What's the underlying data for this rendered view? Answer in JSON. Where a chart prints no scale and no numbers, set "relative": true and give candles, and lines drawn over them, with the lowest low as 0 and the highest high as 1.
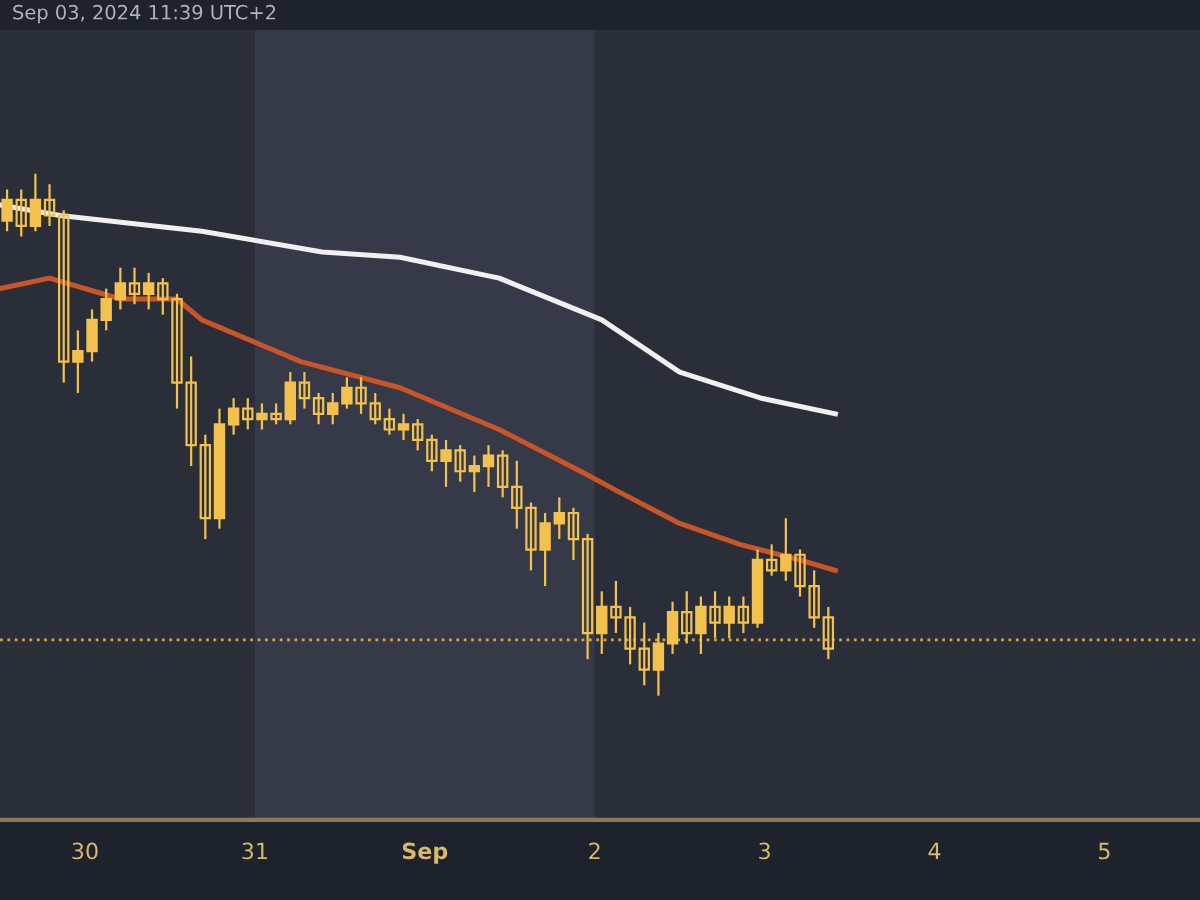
{
  "chart_data": {
    "type": "candlestick",
    "relative": true,
    "tick_labels": "x",
    "legend": false,
    "grid": false,
    "annotations": [
      "Sep 03, 2024 11:39 UTC+2"
    ],
    "x": [
      "2024-08-29T13:00",
      "2024-08-29T15:00",
      "2024-08-29T17:00",
      "2024-08-29T19:00",
      "2024-08-29T21:00",
      "2024-08-29T23:00",
      "2024-08-30T01:00",
      "2024-08-30T03:00",
      "2024-08-30T05:00",
      "2024-08-30T07:00",
      "2024-08-30T09:00",
      "2024-08-30T11:00",
      "2024-08-30T13:00",
      "2024-08-30T15:00",
      "2024-08-30T17:00",
      "2024-08-30T19:00",
      "2024-08-30T21:00",
      "2024-08-30T23:00",
      "2024-08-31T01:00",
      "2024-08-31T03:00",
      "2024-08-31T05:00",
      "2024-08-31T07:00",
      "2024-08-31T09:00",
      "2024-08-31T11:00",
      "2024-08-31T13:00",
      "2024-08-31T15:00",
      "2024-08-31T17:00",
      "2024-08-31T19:00",
      "2024-08-31T21:00",
      "2024-08-31T23:00",
      "2024-09-01T01:00",
      "2024-09-01T03:00",
      "2024-09-01T05:00",
      "2024-09-01T07:00",
      "2024-09-01T09:00",
      "2024-09-01T11:00",
      "2024-09-01T13:00",
      "2024-09-01T15:00",
      "2024-09-01T17:00",
      "2024-09-01T19:00",
      "2024-09-01T21:00",
      "2024-09-01T23:00",
      "2024-09-02T01:00",
      "2024-09-02T03:00",
      "2024-09-02T05:00",
      "2024-09-02T07:00",
      "2024-09-02T09:00",
      "2024-09-02T11:00",
      "2024-09-02T13:00",
      "2024-09-02T15:00",
      "2024-09-02T17:00",
      "2024-09-02T19:00",
      "2024-09-02T21:00",
      "2024-09-02T23:00",
      "2024-09-03T01:00",
      "2024-09-03T03:00",
      "2024-09-03T05:00",
      "2024-09-03T07:00",
      "2024-09-03T09:00"
    ],
    "xlim": [
      "2024-08-29T12:00",
      "2024-09-05T13:30"
    ],
    "xticks": [
      {
        "value": "2024-08-30",
        "label": "30"
      },
      {
        "value": "2024-08-31",
        "label": "31"
      },
      {
        "value": "2024-09-01",
        "label": "Sep"
      },
      {
        "value": "2024-09-02",
        "label": "2"
      },
      {
        "value": "2024-09-03",
        "label": "3"
      },
      {
        "value": "2024-09-04",
        "label": "4"
      },
      {
        "value": "2024-09-05",
        "label": "5"
      }
    ],
    "color": "#f2c14e",
    "ohlc": [
      [
        0.91,
        0.97,
        0.89,
        0.95
      ],
      [
        0.95,
        0.97,
        0.88,
        0.9
      ],
      [
        0.9,
        1.0,
        0.89,
        0.95
      ],
      [
        0.95,
        0.98,
        0.9,
        0.92
      ],
      [
        0.92,
        0.93,
        0.6,
        0.64
      ],
      [
        0.64,
        0.7,
        0.58,
        0.66
      ],
      [
        0.66,
        0.74,
        0.64,
        0.72
      ],
      [
        0.72,
        0.78,
        0.7,
        0.76
      ],
      [
        0.76,
        0.82,
        0.74,
        0.79
      ],
      [
        0.79,
        0.82,
        0.75,
        0.77
      ],
      [
        0.77,
        0.81,
        0.74,
        0.79
      ],
      [
        0.79,
        0.8,
        0.73,
        0.76
      ],
      [
        0.76,
        0.77,
        0.55,
        0.6
      ],
      [
        0.6,
        0.65,
        0.44,
        0.48
      ],
      [
        0.48,
        0.5,
        0.3,
        0.34
      ],
      [
        0.34,
        0.55,
        0.32,
        0.52
      ],
      [
        0.52,
        0.57,
        0.5,
        0.55
      ],
      [
        0.55,
        0.57,
        0.51,
        0.53
      ],
      [
        0.53,
        0.56,
        0.51,
        0.54
      ],
      [
        0.54,
        0.56,
        0.52,
        0.53
      ],
      [
        0.53,
        0.62,
        0.52,
        0.6
      ],
      [
        0.6,
        0.62,
        0.55,
        0.57
      ],
      [
        0.57,
        0.58,
        0.52,
        0.54
      ],
      [
        0.54,
        0.58,
        0.52,
        0.56
      ],
      [
        0.56,
        0.61,
        0.55,
        0.59
      ],
      [
        0.59,
        0.61,
        0.54,
        0.56
      ],
      [
        0.56,
        0.58,
        0.52,
        0.53
      ],
      [
        0.53,
        0.55,
        0.5,
        0.51
      ],
      [
        0.51,
        0.54,
        0.49,
        0.52
      ],
      [
        0.52,
        0.53,
        0.47,
        0.49
      ],
      [
        0.49,
        0.5,
        0.43,
        0.45
      ],
      [
        0.45,
        0.49,
        0.4,
        0.47
      ],
      [
        0.47,
        0.48,
        0.41,
        0.43
      ],
      [
        0.43,
        0.46,
        0.39,
        0.44
      ],
      [
        0.44,
        0.48,
        0.4,
        0.46
      ],
      [
        0.46,
        0.47,
        0.38,
        0.4
      ],
      [
        0.4,
        0.45,
        0.32,
        0.36
      ],
      [
        0.36,
        0.37,
        0.24,
        0.28
      ],
      [
        0.28,
        0.35,
        0.21,
        0.33
      ],
      [
        0.33,
        0.38,
        0.3,
        0.35
      ],
      [
        0.35,
        0.36,
        0.26,
        0.3
      ],
      [
        0.3,
        0.31,
        0.07,
        0.12
      ],
      [
        0.12,
        0.2,
        0.08,
        0.17
      ],
      [
        0.17,
        0.22,
        0.12,
        0.15
      ],
      [
        0.15,
        0.17,
        0.06,
        0.09
      ],
      [
        0.09,
        0.14,
        0.02,
        0.05
      ],
      [
        0.05,
        0.12,
        0.0,
        0.1
      ],
      [
        0.1,
        0.18,
        0.08,
        0.16
      ],
      [
        0.16,
        0.2,
        0.1,
        0.12
      ],
      [
        0.12,
        0.19,
        0.08,
        0.17
      ],
      [
        0.17,
        0.2,
        0.11,
        0.14
      ],
      [
        0.14,
        0.19,
        0.11,
        0.17
      ],
      [
        0.17,
        0.19,
        0.12,
        0.14
      ],
      [
        0.14,
        0.28,
        0.13,
        0.26
      ],
      [
        0.26,
        0.29,
        0.23,
        0.24
      ],
      [
        0.24,
        0.34,
        0.22,
        0.27
      ],
      [
        0.27,
        0.28,
        0.19,
        0.21
      ],
      [
        0.21,
        0.24,
        0.13,
        0.15
      ],
      [
        0.15,
        0.17,
        0.07,
        0.09
      ]
    ],
    "series": [
      {
        "type": "line",
        "color": "#f0f0f0",
        "x": [
          "2024-08-29T12:00",
          "2024-08-29T20:30",
          "2024-08-30T16:30",
          "2024-08-31T09:30",
          "2024-08-31T20:30",
          "2024-09-01T10:30",
          "2024-09-02T01:00",
          "2024-09-02T12:00",
          "2024-09-02T23:30",
          "2024-09-03T10:00"
        ],
        "values": [
          0.94,
          0.92,
          0.89,
          0.85,
          0.84,
          0.8,
          0.72,
          0.62,
          0.57,
          0.54
        ]
      },
      {
        "type": "line",
        "color": "#c8552a",
        "x": [
          "2024-08-29T12:00",
          "2024-08-29T19:00",
          "2024-08-30T05:00",
          "2024-08-30T13:00",
          "2024-08-30T16:30",
          "2024-08-31T06:30",
          "2024-08-31T20:30",
          "2024-09-01T10:30",
          "2024-09-01T22:00",
          "2024-09-02T03:30",
          "2024-09-02T12:00",
          "2024-09-02T20:30",
          "2024-09-03T05:00",
          "2024-09-03T10:00"
        ],
        "values": [
          0.78,
          0.8,
          0.76,
          0.76,
          0.72,
          0.64,
          0.59,
          0.51,
          0.43,
          0.39,
          0.33,
          0.29,
          0.26,
          0.24
        ]
      }
    ],
    "bands": [
      {
        "axis": "x",
        "from": "2024-08-31",
        "to": "2024-09-02",
        "color": "#363a48"
      }
    ],
    "ref_lines": [
      {
        "axis": "y",
        "value": 0.107,
        "color": "#d9a441",
        "line_style": "dotted"
      }
    ]
  }
}
